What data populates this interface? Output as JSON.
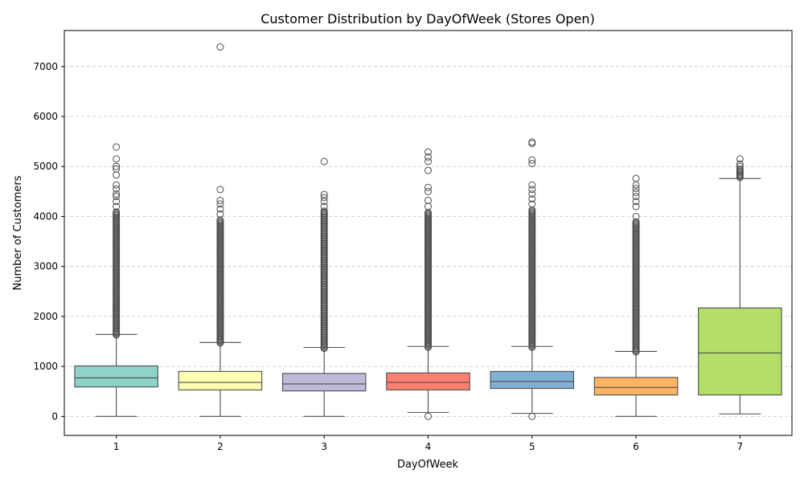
{
  "chart_data": {
    "type": "box",
    "title": "Customer Distribution by DayOfWeek (Stores Open)",
    "xlabel": "DayOfWeek",
    "ylabel": "Number of Customers",
    "categories": [
      "1",
      "2",
      "3",
      "4",
      "5",
      "6",
      "7"
    ],
    "yticks": [
      0,
      1000,
      2000,
      3000,
      4000,
      5000,
      6000,
      7000
    ],
    "ylim": [
      -380,
      7720
    ],
    "grid": "y-dashed",
    "colors": [
      "#8dd3c7",
      "#ffffb3",
      "#bebada",
      "#fb8072",
      "#80b1d3",
      "#fdb462",
      "#b3de69"
    ],
    "boxes": [
      {
        "category": "1",
        "whisker_low": 0,
        "q1": 590,
        "median": 770,
        "q3": 1010,
        "whisker_high": 1640,
        "outlier_range": [
          1630,
          4100
        ],
        "outliers": [
          4200,
          4300,
          4400,
          4450,
          4550,
          4630,
          4830,
          4950,
          5000,
          5150,
          5390
        ]
      },
      {
        "category": "2",
        "whisker_low": 0,
        "q1": 530,
        "median": 680,
        "q3": 900,
        "whisker_high": 1480,
        "outlier_range": [
          1470,
          3950
        ],
        "outliers": [
          4050,
          4150,
          4250,
          4320,
          4540,
          7390
        ]
      },
      {
        "category": "3",
        "whisker_low": 0,
        "q1": 510,
        "median": 650,
        "q3": 860,
        "whisker_high": 1380,
        "outlier_range": [
          1360,
          4120
        ],
        "outliers": [
          4200,
          4300,
          4380,
          4440,
          5100
        ]
      },
      {
        "category": "4",
        "whisker_low": 80,
        "q1": 530,
        "median": 680,
        "q3": 870,
        "whisker_high": 1400,
        "outlier_range": [
          1380,
          4100
        ],
        "outliers": [
          0,
          4200,
          4320,
          4500,
          4580,
          4920,
          5100,
          5190,
          5290
        ]
      },
      {
        "category": "5",
        "whisker_low": 60,
        "q1": 560,
        "median": 700,
        "q3": 900,
        "whisker_high": 1400,
        "outlier_range": [
          1380,
          4150
        ],
        "outliers": [
          0,
          4250,
          4350,
          4450,
          4540,
          4630,
          5060,
          5130,
          5460,
          5490
        ]
      },
      {
        "category": "6",
        "whisker_low": 0,
        "q1": 430,
        "median": 580,
        "q3": 780,
        "whisker_high": 1300,
        "outlier_range": [
          1290,
          3900
        ],
        "outliers": [
          4000,
          4200,
          4300,
          4400,
          4480,
          4560,
          4630,
          4760
        ]
      },
      {
        "category": "7",
        "whisker_low": 50,
        "q1": 430,
        "median": 1270,
        "q3": 2170,
        "whisker_high": 4760,
        "outlier_range": [
          4780,
          4950
        ],
        "outliers": [
          5000,
          5050,
          5150
        ]
      }
    ]
  }
}
